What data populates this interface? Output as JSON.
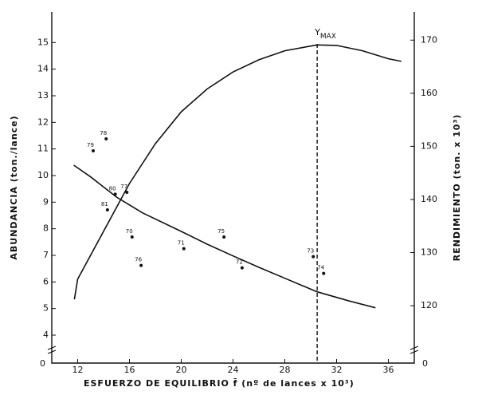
{
  "chart_data": {
    "type": "scatter",
    "xlabel": "ESFUERZO DE EQUILIBRIO  f̄  (nº de lances x 10³)",
    "ylabel": "ABUNDANCIA  (ton./lance)",
    "y2label": "RENDIMIENTO  (ton. x 10³)",
    "break_labels": [
      "0",
      "0"
    ],
    "xlim": [
      10,
      38
    ],
    "xticks": [
      12,
      16,
      20,
      24,
      28,
      32,
      36
    ],
    "ylim": [
      2.95,
      16.15
    ],
    "yticks": [
      4,
      5,
      6,
      7,
      8,
      9,
      10,
      11,
      12,
      13,
      14,
      15
    ],
    "y2lim": [
      109.2,
      175.3
    ],
    "y2ticks": [
      120,
      130,
      140,
      150,
      160,
      170
    ],
    "annotation": {
      "text": "Y",
      "sub": "MAX",
      "x": 30.5
    },
    "series": [
      {
        "type": "scatter",
        "color": "#111",
        "x": [
          13.2,
          14.2,
          14.9,
          15.8,
          14.3,
          16.2,
          16.9,
          20.2,
          23.3,
          24.7,
          30.2,
          31.0
        ],
        "values": [
          10.93,
          11.38,
          9.3,
          9.37,
          8.71,
          7.69,
          6.62,
          7.25,
          7.69,
          6.53,
          6.95,
          6.32
        ],
        "point_labels": [
          "79",
          "78",
          "80",
          "77",
          "81",
          "70",
          "76",
          "71",
          "75",
          "72",
          "73",
          "74"
        ]
      },
      {
        "type": "line",
        "color": "#111",
        "x": [
          11.7,
          13,
          15,
          17,
          20,
          22,
          24,
          26,
          28,
          30.5,
          33,
          35
        ],
        "values": [
          10.39,
          9.95,
          9.19,
          8.6,
          7.9,
          7.42,
          6.98,
          6.55,
          6.14,
          5.63,
          5.28,
          5.03
        ]
      },
      {
        "type": "line",
        "color": "#111",
        "axis": "y2",
        "x": [
          11.75,
          12,
          14,
          16,
          18,
          20,
          22,
          24,
          26,
          28,
          30.5,
          32,
          34,
          36,
          37
        ],
        "values": [
          121.2,
          125,
          134,
          143,
          150.5,
          156.5,
          160.8,
          164,
          166.3,
          168,
          169.1,
          169,
          168,
          166.5,
          166
        ]
      }
    ]
  }
}
